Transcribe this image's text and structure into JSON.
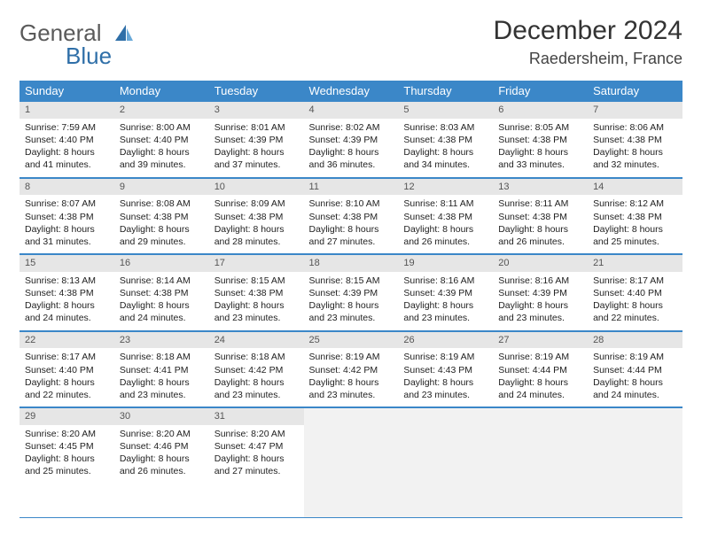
{
  "logo": {
    "text1": "General",
    "text2": "Blue"
  },
  "title": "December 2024",
  "location": "Raedersheim, France",
  "colors": {
    "header_bg": "#3b87c8",
    "header_text": "#ffffff",
    "daynum_bg": "#e6e6e6",
    "border": "#3b87c8",
    "logo_gray": "#5a5a5a",
    "logo_blue": "#2f6fa8"
  },
  "weekdays": [
    "Sunday",
    "Monday",
    "Tuesday",
    "Wednesday",
    "Thursday",
    "Friday",
    "Saturday"
  ],
  "weeks": [
    [
      {
        "n": "1",
        "sr": "7:59 AM",
        "ss": "4:40 PM",
        "dl": "8 hours and 41 minutes."
      },
      {
        "n": "2",
        "sr": "8:00 AM",
        "ss": "4:40 PM",
        "dl": "8 hours and 39 minutes."
      },
      {
        "n": "3",
        "sr": "8:01 AM",
        "ss": "4:39 PM",
        "dl": "8 hours and 37 minutes."
      },
      {
        "n": "4",
        "sr": "8:02 AM",
        "ss": "4:39 PM",
        "dl": "8 hours and 36 minutes."
      },
      {
        "n": "5",
        "sr": "8:03 AM",
        "ss": "4:38 PM",
        "dl": "8 hours and 34 minutes."
      },
      {
        "n": "6",
        "sr": "8:05 AM",
        "ss": "4:38 PM",
        "dl": "8 hours and 33 minutes."
      },
      {
        "n": "7",
        "sr": "8:06 AM",
        "ss": "4:38 PM",
        "dl": "8 hours and 32 minutes."
      }
    ],
    [
      {
        "n": "8",
        "sr": "8:07 AM",
        "ss": "4:38 PM",
        "dl": "8 hours and 31 minutes."
      },
      {
        "n": "9",
        "sr": "8:08 AM",
        "ss": "4:38 PM",
        "dl": "8 hours and 29 minutes."
      },
      {
        "n": "10",
        "sr": "8:09 AM",
        "ss": "4:38 PM",
        "dl": "8 hours and 28 minutes."
      },
      {
        "n": "11",
        "sr": "8:10 AM",
        "ss": "4:38 PM",
        "dl": "8 hours and 27 minutes."
      },
      {
        "n": "12",
        "sr": "8:11 AM",
        "ss": "4:38 PM",
        "dl": "8 hours and 26 minutes."
      },
      {
        "n": "13",
        "sr": "8:11 AM",
        "ss": "4:38 PM",
        "dl": "8 hours and 26 minutes."
      },
      {
        "n": "14",
        "sr": "8:12 AM",
        "ss": "4:38 PM",
        "dl": "8 hours and 25 minutes."
      }
    ],
    [
      {
        "n": "15",
        "sr": "8:13 AM",
        "ss": "4:38 PM",
        "dl": "8 hours and 24 minutes."
      },
      {
        "n": "16",
        "sr": "8:14 AM",
        "ss": "4:38 PM",
        "dl": "8 hours and 24 minutes."
      },
      {
        "n": "17",
        "sr": "8:15 AM",
        "ss": "4:38 PM",
        "dl": "8 hours and 23 minutes."
      },
      {
        "n": "18",
        "sr": "8:15 AM",
        "ss": "4:39 PM",
        "dl": "8 hours and 23 minutes."
      },
      {
        "n": "19",
        "sr": "8:16 AM",
        "ss": "4:39 PM",
        "dl": "8 hours and 23 minutes."
      },
      {
        "n": "20",
        "sr": "8:16 AM",
        "ss": "4:39 PM",
        "dl": "8 hours and 23 minutes."
      },
      {
        "n": "21",
        "sr": "8:17 AM",
        "ss": "4:40 PM",
        "dl": "8 hours and 22 minutes."
      }
    ],
    [
      {
        "n": "22",
        "sr": "8:17 AM",
        "ss": "4:40 PM",
        "dl": "8 hours and 22 minutes."
      },
      {
        "n": "23",
        "sr": "8:18 AM",
        "ss": "4:41 PM",
        "dl": "8 hours and 23 minutes."
      },
      {
        "n": "24",
        "sr": "8:18 AM",
        "ss": "4:42 PM",
        "dl": "8 hours and 23 minutes."
      },
      {
        "n": "25",
        "sr": "8:19 AM",
        "ss": "4:42 PM",
        "dl": "8 hours and 23 minutes."
      },
      {
        "n": "26",
        "sr": "8:19 AM",
        "ss": "4:43 PM",
        "dl": "8 hours and 23 minutes."
      },
      {
        "n": "27",
        "sr": "8:19 AM",
        "ss": "4:44 PM",
        "dl": "8 hours and 24 minutes."
      },
      {
        "n": "28",
        "sr": "8:19 AM",
        "ss": "4:44 PM",
        "dl": "8 hours and 24 minutes."
      }
    ],
    [
      {
        "n": "29",
        "sr": "8:20 AM",
        "ss": "4:45 PM",
        "dl": "8 hours and 25 minutes."
      },
      {
        "n": "30",
        "sr": "8:20 AM",
        "ss": "4:46 PM",
        "dl": "8 hours and 26 minutes."
      },
      {
        "n": "31",
        "sr": "8:20 AM",
        "ss": "4:47 PM",
        "dl": "8 hours and 27 minutes."
      },
      {
        "empty": true
      },
      {
        "empty": true
      },
      {
        "empty": true
      },
      {
        "empty": true
      }
    ]
  ],
  "labels": {
    "sunrise": "Sunrise: ",
    "sunset": "Sunset: ",
    "daylight": "Daylight: "
  }
}
